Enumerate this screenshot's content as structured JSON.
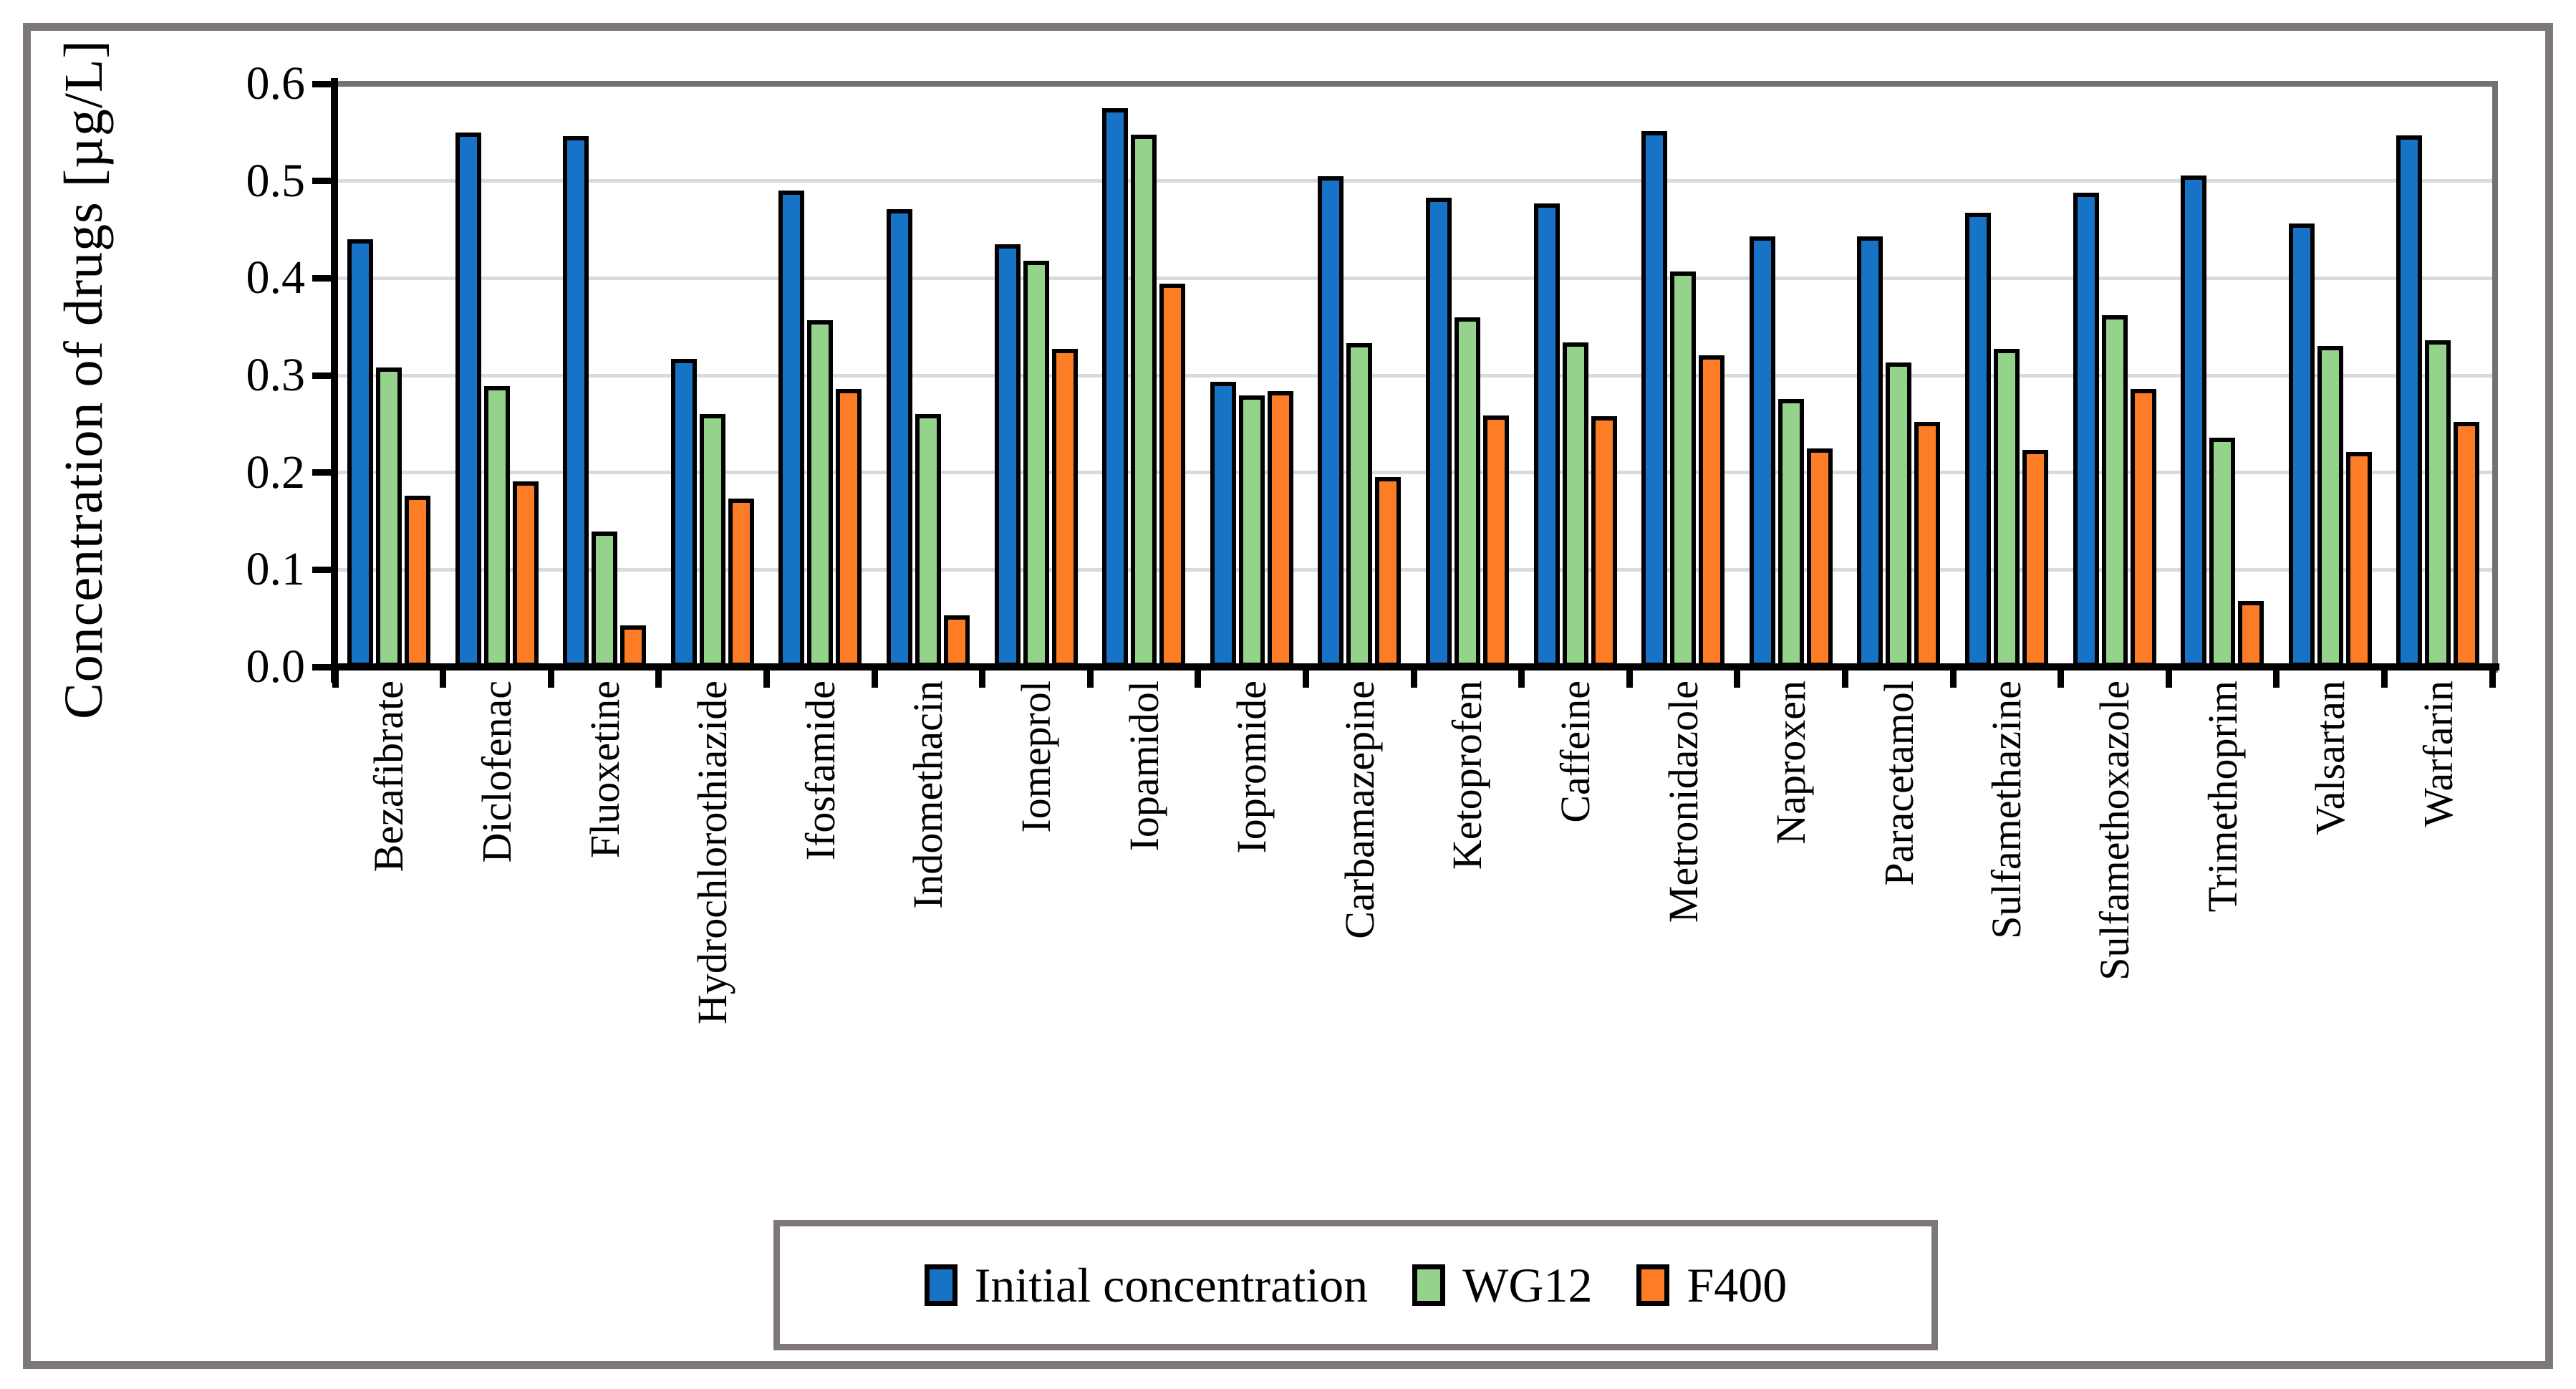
{
  "figure": {
    "background": "#ffffff",
    "outer_border_color": "#7d7875",
    "plot_border_color": "#767171",
    "gridline_color": "#dadada",
    "axis_color": "#000000"
  },
  "chart_data": {
    "type": "bar",
    "title": "",
    "xlabel": "",
    "ylabel": "Concentration of drugs [µg/L]",
    "ylim": [
      0.0,
      0.6
    ],
    "yticks": [
      "0.0",
      "0.1",
      "0.2",
      "0.3",
      "0.4",
      "0.5",
      "0.6"
    ],
    "grid": "horizontal",
    "legend_position": "bottom",
    "categories": [
      "Bezafibrate",
      "Diclofenac",
      "Fluoxetine",
      "Hydrochlorothiazide",
      "Ifosfamide",
      "Indomethacin",
      "Iomeprol",
      "Iopamidol",
      "Iopromide",
      "Carbamazepine",
      "Ketoprofen",
      "Caffeine",
      "Metronidazole",
      "Naproxen",
      "Paracetamol",
      "Sulfamethazine",
      "Sulfamethoxazole",
      "Trimethoprim",
      "Valsartan",
      "Warfarin"
    ],
    "series": [
      {
        "name": "Initial concentration",
        "color": "#1773c6",
        "values": [
          0.44,
          0.55,
          0.546,
          0.317,
          0.49,
          0.471,
          0.435,
          0.575,
          0.293,
          0.505,
          0.483,
          0.477,
          0.551,
          0.443,
          0.443,
          0.467,
          0.488,
          0.506,
          0.456,
          0.547
        ]
      },
      {
        "name": "WG12",
        "color": "#95d38c",
        "values": [
          0.308,
          0.289,
          0.139,
          0.26,
          0.357,
          0.26,
          0.418,
          0.548,
          0.279,
          0.333,
          0.36,
          0.334,
          0.407,
          0.276,
          0.313,
          0.327,
          0.362,
          0.236,
          0.33,
          0.336
        ]
      },
      {
        "name": "F400",
        "color": "#fd7d27",
        "values": [
          0.176,
          0.191,
          0.043,
          0.173,
          0.286,
          0.053,
          0.327,
          0.394,
          0.284,
          0.195,
          0.259,
          0.258,
          0.321,
          0.225,
          0.252,
          0.223,
          0.286,
          0.068,
          0.221,
          0.252
        ]
      }
    ]
  }
}
